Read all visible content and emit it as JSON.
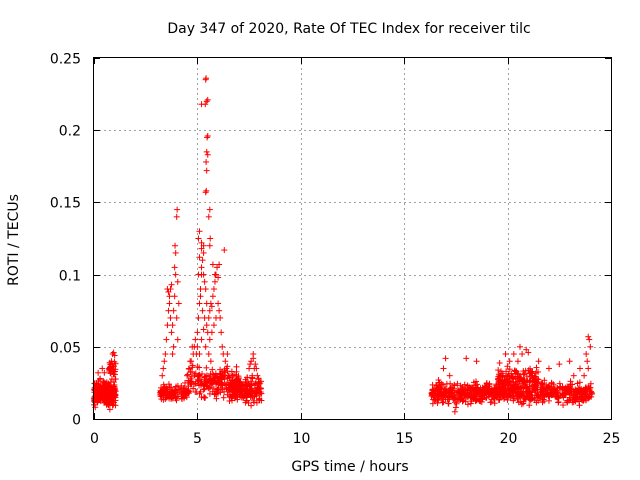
{
  "chart_data": {
    "type": "scatter",
    "title": "Day 347 of 2020, Rate Of TEC Index for receiver tilc",
    "xlabel": "GPS time / hours",
    "ylabel": "ROTI / TECUs",
    "xlim": [
      0,
      25
    ],
    "ylim": [
      0,
      0.25
    ],
    "grid": true,
    "x_ticks": [
      0,
      5,
      10,
      15,
      20,
      25
    ],
    "y_ticks": [
      0,
      0.05,
      0.1,
      0.15,
      0.2,
      0.25
    ],
    "x_tick_labels": [
      "0",
      "5",
      "10",
      "15",
      "20",
      "25"
    ],
    "y_tick_labels": [
      "0",
      "0.05",
      "0.1",
      "0.15",
      "0.2",
      "0.25"
    ],
    "marker": "plus",
    "color": "#ff0000",
    "clusters": [
      {
        "x_range": [
          0.0,
          1.05
        ],
        "y_base": 0.018,
        "y_spread": 0.012,
        "count": 260
      },
      {
        "x_range": [
          0.7,
          1.05
        ],
        "y_base": 0.035,
        "y_spread": 0.01,
        "count": 30
      },
      {
        "x_range": [
          3.2,
          4.6
        ],
        "y_base": 0.018,
        "y_spread": 0.008,
        "count": 120
      },
      {
        "x_range": [
          4.5,
          7.0
        ],
        "y_base": 0.025,
        "y_spread": 0.015,
        "count": 200
      },
      {
        "x_range": [
          6.5,
          8.1
        ],
        "y_base": 0.02,
        "y_spread": 0.012,
        "count": 180
      },
      {
        "x_range": [
          16.3,
          24.1
        ],
        "y_base": 0.018,
        "y_spread": 0.01,
        "count": 700
      },
      {
        "x_range": [
          19.5,
          21.5
        ],
        "y_base": 0.028,
        "y_spread": 0.012,
        "count": 160
      }
    ],
    "points": [
      [
        3.3,
        0.03
      ],
      [
        3.35,
        0.035
      ],
      [
        3.4,
        0.04
      ],
      [
        3.45,
        0.045
      ],
      [
        3.5,
        0.055
      ],
      [
        3.55,
        0.065
      ],
      [
        3.6,
        0.075
      ],
      [
        3.65,
        0.085
      ],
      [
        3.7,
        0.09
      ],
      [
        3.75,
        0.093
      ],
      [
        3.55,
        0.09
      ],
      [
        3.6,
        0.088
      ],
      [
        3.65,
        0.08
      ],
      [
        3.7,
        0.07
      ],
      [
        3.75,
        0.06
      ],
      [
        3.8,
        0.065
      ],
      [
        3.85,
        0.075
      ],
      [
        3.9,
        0.085
      ],
      [
        3.95,
        0.1
      ],
      [
        3.9,
        0.105
      ],
      [
        3.95,
        0.115
      ],
      [
        3.92,
        0.12
      ],
      [
        4.0,
        0.14
      ],
      [
        4.02,
        0.145
      ],
      [
        4.05,
        0.095
      ],
      [
        4.1,
        0.08
      ],
      [
        4.0,
        0.07
      ],
      [
        3.8,
        0.045
      ],
      [
        3.85,
        0.05
      ],
      [
        4.05,
        0.055
      ],
      [
        4.3,
        0.02
      ],
      [
        4.4,
        0.025
      ],
      [
        4.5,
        0.03
      ],
      [
        4.6,
        0.035
      ],
      [
        4.7,
        0.04
      ],
      [
        4.8,
        0.045
      ],
      [
        4.85,
        0.05
      ],
      [
        4.9,
        0.055
      ],
      [
        4.75,
        0.05
      ],
      [
        4.65,
        0.04
      ],
      [
        5.0,
        0.06
      ],
      [
        5.05,
        0.07
      ],
      [
        5.1,
        0.08
      ],
      [
        5.15,
        0.09
      ],
      [
        5.2,
        0.1
      ],
      [
        5.25,
        0.11
      ],
      [
        5.05,
        0.1
      ],
      [
        5.1,
        0.112
      ],
      [
        5.2,
        0.105
      ],
      [
        5.3,
        0.115
      ],
      [
        5.05,
        0.125
      ],
      [
        5.1,
        0.13
      ],
      [
        5.2,
        0.122
      ],
      [
        5.3,
        0.1
      ],
      [
        5.35,
        0.095
      ],
      [
        5.4,
        0.09
      ],
      [
        5.15,
        0.085
      ],
      [
        5.25,
        0.075
      ],
      [
        5.35,
        0.07
      ],
      [
        5.45,
        0.065
      ],
      [
        5.5,
        0.06
      ],
      [
        5.55,
        0.07
      ],
      [
        5.6,
        0.075
      ],
      [
        5.65,
        0.08
      ],
      [
        5.7,
        0.078
      ],
      [
        5.75,
        0.085
      ],
      [
        5.8,
        0.09
      ],
      [
        5.85,
        0.095
      ],
      [
        5.9,
        0.1
      ],
      [
        5.95,
        0.105
      ],
      [
        5.6,
        0.055
      ],
      [
        5.7,
        0.06
      ],
      [
        5.8,
        0.065
      ],
      [
        5.9,
        0.07
      ],
      [
        6.0,
        0.08
      ],
      [
        6.05,
        0.075
      ],
      [
        6.1,
        0.07
      ],
      [
        6.15,
        0.06
      ],
      [
        6.2,
        0.05
      ],
      [
        6.25,
        0.045
      ],
      [
        5.75,
        0.107
      ],
      [
        5.85,
        0.1
      ],
      [
        6.0,
        0.098
      ],
      [
        6.05,
        0.107
      ],
      [
        5.45,
        0.08
      ],
      [
        5.3,
        0.062
      ],
      [
        5.2,
        0.055
      ],
      [
        5.0,
        0.05
      ],
      [
        4.95,
        0.045
      ],
      [
        5.1,
        0.045
      ],
      [
        6.3,
        0.117
      ],
      [
        5.65,
        0.04
      ],
      [
        5.55,
        0.045
      ],
      [
        5.4,
        0.05
      ],
      [
        6.4,
        0.035
      ],
      [
        6.5,
        0.03
      ],
      [
        6.35,
        0.04
      ],
      [
        6.45,
        0.045
      ],
      [
        6.6,
        0.025
      ],
      [
        6.7,
        0.03
      ],
      [
        5.4,
        0.235
      ],
      [
        5.42,
        0.236
      ],
      [
        5.45,
        0.22
      ],
      [
        5.5,
        0.221
      ],
      [
        5.38,
        0.218
      ],
      [
        5.2,
        0.218
      ],
      [
        5.47,
        0.195
      ],
      [
        5.5,
        0.196
      ],
      [
        5.45,
        0.185
      ],
      [
        5.5,
        0.183
      ],
      [
        5.42,
        0.178
      ],
      [
        5.45,
        0.172
      ],
      [
        5.4,
        0.157
      ],
      [
        5.43,
        0.158
      ],
      [
        5.6,
        0.145
      ],
      [
        5.55,
        0.14
      ],
      [
        5.62,
        0.125
      ],
      [
        5.2,
        0.118
      ],
      [
        5.3,
        0.12
      ],
      [
        5.6,
        0.12
      ],
      [
        7.6,
        0.04
      ],
      [
        7.7,
        0.042
      ],
      [
        7.8,
        0.038
      ],
      [
        7.75,
        0.035
      ],
      [
        7.65,
        0.03
      ],
      [
        7.85,
        0.035
      ],
      [
        7.9,
        0.03
      ],
      [
        7.5,
        0.035
      ],
      [
        7.55,
        0.038
      ],
      [
        7.7,
        0.045
      ],
      [
        20.6,
        0.05
      ],
      [
        20.9,
        0.048
      ],
      [
        21.0,
        0.046
      ],
      [
        20.7,
        0.045
      ],
      [
        20.3,
        0.045
      ],
      [
        19.9,
        0.045
      ],
      [
        20.1,
        0.04
      ],
      [
        20.5,
        0.04
      ],
      [
        18.5,
        0.04
      ],
      [
        18.0,
        0.042
      ],
      [
        17.0,
        0.042
      ],
      [
        16.9,
        0.035
      ],
      [
        17.2,
        0.03
      ],
      [
        17.3,
        0.02
      ],
      [
        17.4,
        0.015
      ],
      [
        17.45,
        0.005
      ],
      [
        17.5,
        0.008
      ],
      [
        23.9,
        0.057
      ],
      [
        23.95,
        0.055
      ],
      [
        24.0,
        0.05
      ],
      [
        23.8,
        0.045
      ],
      [
        23.85,
        0.04
      ],
      [
        23.9,
        0.035
      ],
      [
        23.7,
        0.03
      ],
      [
        21.5,
        0.04
      ],
      [
        22.0,
        0.035
      ],
      [
        22.5,
        0.038
      ],
      [
        23.0,
        0.04
      ],
      [
        23.2,
        0.03
      ],
      [
        23.5,
        0.035
      ],
      [
        0.4,
        0.035
      ],
      [
        0.5,
        0.032
      ],
      [
        0.9,
        0.045
      ],
      [
        0.95,
        0.046
      ],
      [
        1.0,
        0.044
      ],
      [
        0.85,
        0.04
      ],
      [
        0.2,
        0.032
      ],
      [
        0.3,
        0.028
      ]
    ]
  }
}
